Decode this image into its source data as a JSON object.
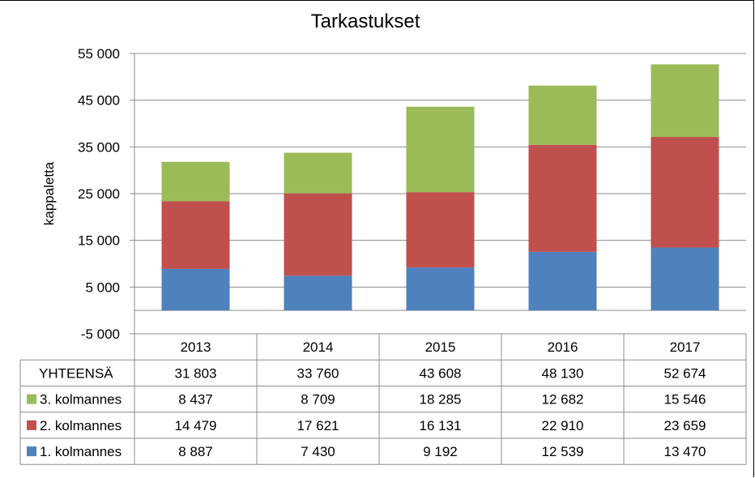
{
  "chart_data": {
    "type": "bar",
    "stacked": true,
    "title": "Tarkastukset",
    "xlabel": "",
    "ylabel": "kappaletta",
    "ylim": [
      -5000,
      55000
    ],
    "yticks": [
      -5000,
      5000,
      15000,
      25000,
      35000,
      45000,
      55000
    ],
    "ytick_labels": [
      "-5 000",
      "5 000",
      "15 000",
      "25 000",
      "35 000",
      "45 000",
      "55 000"
    ],
    "grid": true,
    "categories": [
      "2013",
      "2014",
      "2015",
      "2016",
      "2017"
    ],
    "series": [
      {
        "name": "1. kolmannes",
        "values": [
          8887,
          7430,
          9192,
          12539,
          13470
        ],
        "labels": [
          "8 887",
          "7 430",
          "9 192",
          "12 539",
          "13 470"
        ],
        "color": "#4F81BD"
      },
      {
        "name": "2. kolmannes",
        "values": [
          14479,
          17621,
          16131,
          22910,
          23659
        ],
        "labels": [
          "14 479",
          "17 621",
          "16 131",
          "22 910",
          "23 659"
        ],
        "color": "#C0504D"
      },
      {
        "name": "3. kolmannes",
        "values": [
          8437,
          8709,
          18285,
          12682,
          15546
        ],
        "labels": [
          "8 437",
          "8 709",
          "18 285",
          "12 682",
          "15 546"
        ],
        "color": "#9BBB59"
      }
    ],
    "total_row": {
      "name": "YHTEENSÄ",
      "values": [
        31803,
        33760,
        43608,
        48130,
        52674
      ],
      "labels": [
        "31 803",
        "33 760",
        "43 608",
        "48 130",
        "52 674"
      ]
    },
    "legend": "data-table"
  }
}
